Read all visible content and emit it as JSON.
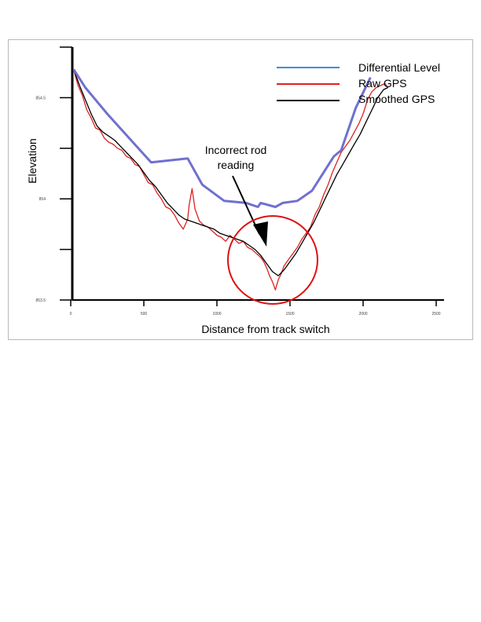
{
  "chart_data": {
    "type": "line",
    "title": "",
    "xlabel": "Distance from track switch",
    "ylabel": "Elevation",
    "xlim": [
      0,
      2500
    ],
    "ylim": [
      853.5,
      854.75
    ],
    "x_ticks": [
      0,
      500,
      1000,
      1500,
      2000,
      2500
    ],
    "x_tick_labels": [
      "0",
      "500",
      "1000",
      "1500",
      "2000",
      "2500"
    ],
    "y_ticks": [
      853.5,
      854,
      854.5
    ],
    "y_tick_labels": [
      "853.5",
      "854",
      "854.5"
    ],
    "grid": false,
    "legend_position": "top-right",
    "series": [
      {
        "name": "Differential Level",
        "color": "#7070d0",
        "x": [
          20,
          100,
          250,
          450,
          550,
          800,
          900,
          1050,
          1200,
          1280,
          1300,
          1400,
          1450,
          1550,
          1650,
          1800,
          1850,
          1950,
          2050
        ],
        "y": [
          854.64,
          854.55,
          854.42,
          854.26,
          854.18,
          854.2,
          854.07,
          853.99,
          853.98,
          853.96,
          853.98,
          853.96,
          853.98,
          853.99,
          854.04,
          854.21,
          854.24,
          854.45,
          854.6
        ]
      },
      {
        "name": "Raw GPS",
        "color": "#e02020",
        "x": [
          20,
          50,
          80,
          110,
          140,
          170,
          200,
          230,
          260,
          290,
          320,
          350,
          380,
          410,
          440,
          470,
          500,
          530,
          560,
          590,
          620,
          650,
          680,
          710,
          740,
          770,
          800,
          810,
          830,
          850,
          880,
          910,
          940,
          970,
          1000,
          1030,
          1060,
          1090,
          1120,
          1150,
          1180,
          1210,
          1240,
          1270,
          1300,
          1320,
          1340,
          1360,
          1380,
          1400,
          1420,
          1440,
          1460,
          1490,
          1520,
          1550,
          1580,
          1610,
          1640,
          1670,
          1700,
          1730,
          1760,
          1790,
          1820,
          1850,
          1880,
          1910,
          1940,
          1970,
          2000,
          2030,
          2060,
          2090,
          2120,
          2150,
          2170
        ],
        "y": [
          854.64,
          854.56,
          854.51,
          854.44,
          854.4,
          854.35,
          854.34,
          854.3,
          854.28,
          854.27,
          854.25,
          854.24,
          854.21,
          854.2,
          854.17,
          854.16,
          854.12,
          854.08,
          854.07,
          854.03,
          854.0,
          853.96,
          853.95,
          853.92,
          853.88,
          853.85,
          853.9,
          853.97,
          854.05,
          853.95,
          853.89,
          853.87,
          853.86,
          853.84,
          853.82,
          853.81,
          853.79,
          853.82,
          853.8,
          853.78,
          853.79,
          853.76,
          853.75,
          853.73,
          853.71,
          853.69,
          853.66,
          853.62,
          853.59,
          853.55,
          853.6,
          853.63,
          853.67,
          853.7,
          853.73,
          853.76,
          853.8,
          853.83,
          853.86,
          853.92,
          853.96,
          854.02,
          854.07,
          854.13,
          854.18,
          854.23,
          854.26,
          854.29,
          854.33,
          854.37,
          854.42,
          854.49,
          854.53,
          854.55,
          854.56,
          854.57,
          854.55
        ]
      },
      {
        "name": "Smoothed GPS",
        "color": "#000000",
        "x": [
          20,
          60,
          100,
          140,
          180,
          220,
          260,
          300,
          340,
          380,
          420,
          460,
          500,
          540,
          580,
          620,
          660,
          700,
          740,
          780,
          820,
          860,
          900,
          940,
          980,
          1020,
          1060,
          1100,
          1140,
          1180,
          1220,
          1260,
          1300,
          1340,
          1380,
          1420,
          1460,
          1500,
          1540,
          1580,
          1620,
          1660,
          1700,
          1740,
          1780,
          1820,
          1860,
          1900,
          1940,
          1980,
          2020,
          2060,
          2100,
          2140,
          2170
        ],
        "y": [
          854.64,
          854.56,
          854.49,
          854.42,
          854.36,
          854.33,
          854.31,
          854.29,
          854.26,
          854.23,
          854.2,
          854.17,
          854.13,
          854.09,
          854.06,
          854.02,
          853.98,
          853.95,
          853.92,
          853.9,
          853.89,
          853.88,
          853.87,
          853.86,
          853.85,
          853.83,
          853.82,
          853.81,
          853.8,
          853.79,
          853.77,
          853.75,
          853.72,
          853.68,
          853.64,
          853.62,
          853.65,
          853.69,
          853.73,
          853.78,
          853.83,
          853.88,
          853.94,
          854.0,
          854.06,
          854.12,
          854.17,
          854.22,
          854.27,
          854.32,
          854.38,
          854.44,
          854.5,
          854.54,
          854.55
        ]
      }
    ],
    "annotations": [
      {
        "text_lines": [
          "Incorrect rod",
          "reading"
        ]
      }
    ]
  }
}
